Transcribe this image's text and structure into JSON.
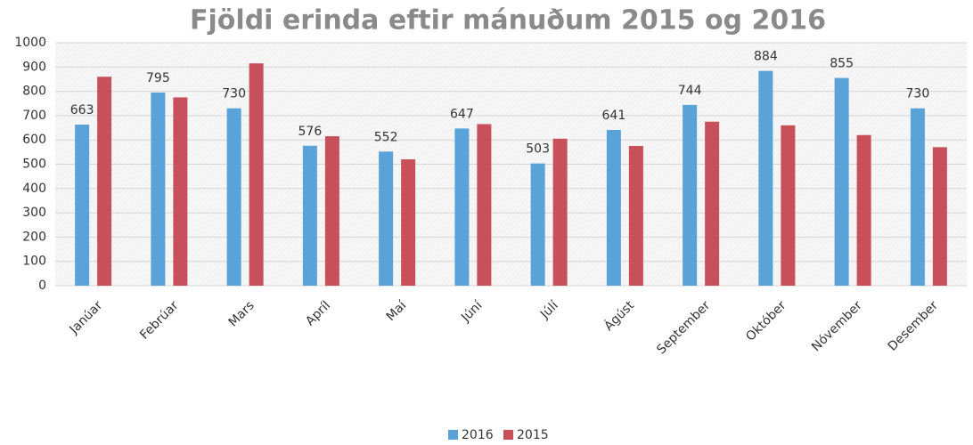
{
  "chart_data": {
    "type": "bar",
    "title": "Fjöldi erinda eftir mánuðum 2015 og 2016",
    "categories": [
      "Janúar",
      "Febrúar",
      "Mars",
      "Apríl",
      "Maí",
      "Júní",
      "Júlí",
      "Ágúst",
      "September",
      "Október",
      "Nóvember",
      "Desember"
    ],
    "series": [
      {
        "name": "2016",
        "color": "#5aa3d8",
        "labels": true,
        "values": [
          663,
          795,
          730,
          576,
          552,
          647,
          503,
          641,
          744,
          884,
          855,
          730
        ]
      },
      {
        "name": "2015",
        "color": "#c8505a",
        "labels": false,
        "values": [
          860,
          775,
          915,
          615,
          520,
          665,
          605,
          575,
          675,
          660,
          620,
          570
        ]
      }
    ],
    "ylim": [
      0,
      1000
    ],
    "yticks": [
      0,
      100,
      200,
      300,
      400,
      500,
      600,
      700,
      800,
      900,
      1000
    ],
    "grid": true,
    "legend": "bottom"
  }
}
